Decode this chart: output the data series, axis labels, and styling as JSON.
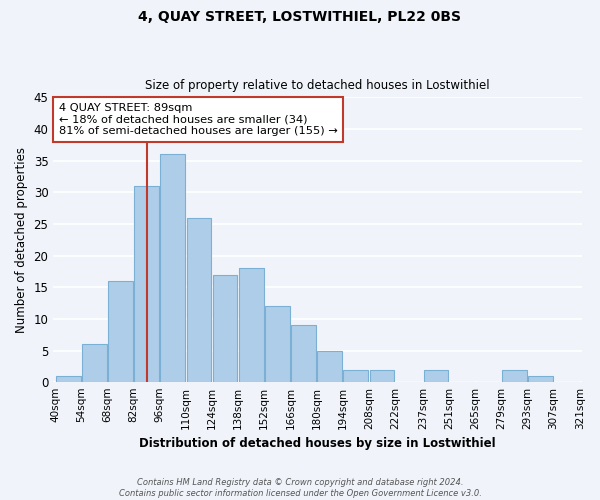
{
  "title": "4, QUAY STREET, LOSTWITHIEL, PL22 0BS",
  "subtitle": "Size of property relative to detached houses in Lostwithiel",
  "xlabel": "Distribution of detached houses by size in Lostwithiel",
  "ylabel": "Number of detached properties",
  "bar_labels": [
    "40sqm",
    "54sqm",
    "68sqm",
    "82sqm",
    "96sqm",
    "110sqm",
    "124sqm",
    "138sqm",
    "152sqm",
    "166sqm",
    "180sqm",
    "194sqm",
    "208sqm",
    "222sqm",
    "237sqm",
    "251sqm",
    "265sqm",
    "279sqm",
    "293sqm",
    "307sqm",
    "321sqm"
  ],
  "bar_values": [
    1,
    6,
    16,
    31,
    36,
    26,
    17,
    18,
    12,
    9,
    5,
    2,
    2,
    0,
    2,
    0,
    0,
    2,
    1,
    0
  ],
  "bin_edges": [
    40,
    54,
    68,
    82,
    96,
    110,
    124,
    138,
    152,
    166,
    180,
    194,
    208,
    222,
    237,
    251,
    265,
    279,
    293,
    307,
    321
  ],
  "bar_color": "#aecde8",
  "bar_edge_color": "#7ab0d4",
  "property_line_x": 89,
  "property_line_color": "#c0392b",
  "annotation_line1": "4 QUAY STREET: 89sqm",
  "annotation_line2": "← 18% of detached houses are smaller (34)",
  "annotation_line3": "81% of semi-detached houses are larger (155) →",
  "annotation_box_color": "#ffffff",
  "annotation_box_edge_color": "#c0392b",
  "ylim": [
    0,
    45
  ],
  "yticks": [
    0,
    5,
    10,
    15,
    20,
    25,
    30,
    35,
    40,
    45
  ],
  "footer_text": "Contains HM Land Registry data © Crown copyright and database right 2024.\nContains public sector information licensed under the Open Government Licence v3.0.",
  "bg_color": "#f0f4fa",
  "plot_bg_color": "#f0f4fa",
  "grid_color": "#ffffff"
}
